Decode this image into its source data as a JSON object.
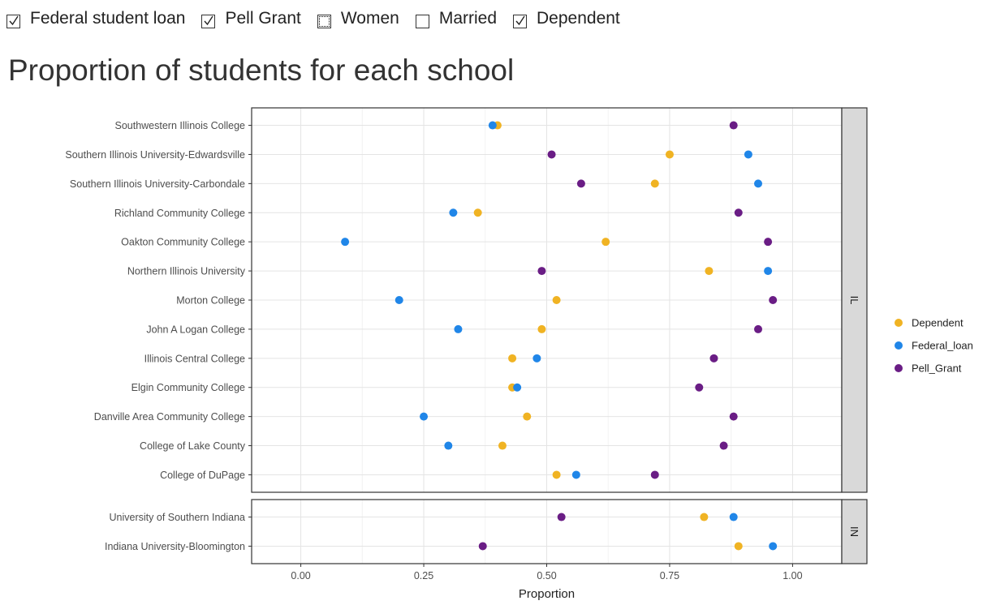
{
  "filters": [
    {
      "label": "Federal student loan",
      "checked": true
    },
    {
      "label": "Pell Grant",
      "checked": true
    },
    {
      "label": "Women",
      "checked": false
    },
    {
      "label": "Married",
      "checked": false
    },
    {
      "label": "Dependent",
      "checked": true
    }
  ],
  "page_title": "Proportion of students for each school",
  "chart_data": {
    "type": "scatter",
    "xlabel": "Proportion",
    "ylabel": "",
    "xlim": [
      -0.1,
      1.1
    ],
    "x_ticks": [
      0,
      0.25,
      0.5,
      0.75,
      1
    ],
    "x_tick_labels": [
      "0.00",
      "0.25",
      "0.50",
      "0.75",
      "1.00"
    ],
    "grid": true,
    "legend_position": "right",
    "series": [
      {
        "name": "Dependent",
        "color": "#F0B323"
      },
      {
        "name": "Federal_loan",
        "color": "#2086E8"
      },
      {
        "name": "Pell_Grant",
        "color": "#6A1D85"
      }
    ],
    "facets": [
      {
        "label": "IL",
        "schools": [
          {
            "name": "Southwestern Illinois College",
            "Dependent": 0.4,
            "Federal_loan": 0.39,
            "Pell_Grant": 0.88
          },
          {
            "name": "Southern Illinois University-Edwardsville",
            "Dependent": 0.75,
            "Federal_loan": 0.91,
            "Pell_Grant": 0.51
          },
          {
            "name": "Southern Illinois University-Carbondale",
            "Dependent": 0.72,
            "Federal_loan": 0.93,
            "Pell_Grant": 0.57
          },
          {
            "name": "Richland Community College",
            "Dependent": 0.36,
            "Federal_loan": 0.31,
            "Pell_Grant": 0.89
          },
          {
            "name": "Oakton Community College",
            "Dependent": 0.62,
            "Federal_loan": 0.09,
            "Pell_Grant": 0.95
          },
          {
            "name": "Northern Illinois University",
            "Dependent": 0.83,
            "Federal_loan": 0.95,
            "Pell_Grant": 0.49
          },
          {
            "name": "Morton College",
            "Dependent": 0.52,
            "Federal_loan": 0.2,
            "Pell_Grant": 0.96
          },
          {
            "name": "John A Logan College",
            "Dependent": 0.49,
            "Federal_loan": 0.32,
            "Pell_Grant": 0.93
          },
          {
            "name": "Illinois Central College",
            "Dependent": 0.43,
            "Federal_loan": 0.48,
            "Pell_Grant": 0.84
          },
          {
            "name": "Elgin Community College",
            "Dependent": 0.43,
            "Federal_loan": 0.44,
            "Pell_Grant": 0.81
          },
          {
            "name": "Danville Area Community College",
            "Dependent": 0.46,
            "Federal_loan": 0.25,
            "Pell_Grant": 0.88
          },
          {
            "name": "College of Lake County",
            "Dependent": 0.41,
            "Federal_loan": 0.3,
            "Pell_Grant": 0.86
          },
          {
            "name": "College of DuPage",
            "Dependent": 0.52,
            "Federal_loan": 0.56,
            "Pell_Grant": 0.72
          }
        ]
      },
      {
        "label": "IN",
        "schools": [
          {
            "name": "University of Southern Indiana",
            "Dependent": 0.82,
            "Federal_loan": 0.88,
            "Pell_Grant": 0.53
          },
          {
            "name": "Indiana University-Bloomington",
            "Dependent": 0.89,
            "Federal_loan": 0.96,
            "Pell_Grant": 0.37
          }
        ]
      }
    ]
  }
}
